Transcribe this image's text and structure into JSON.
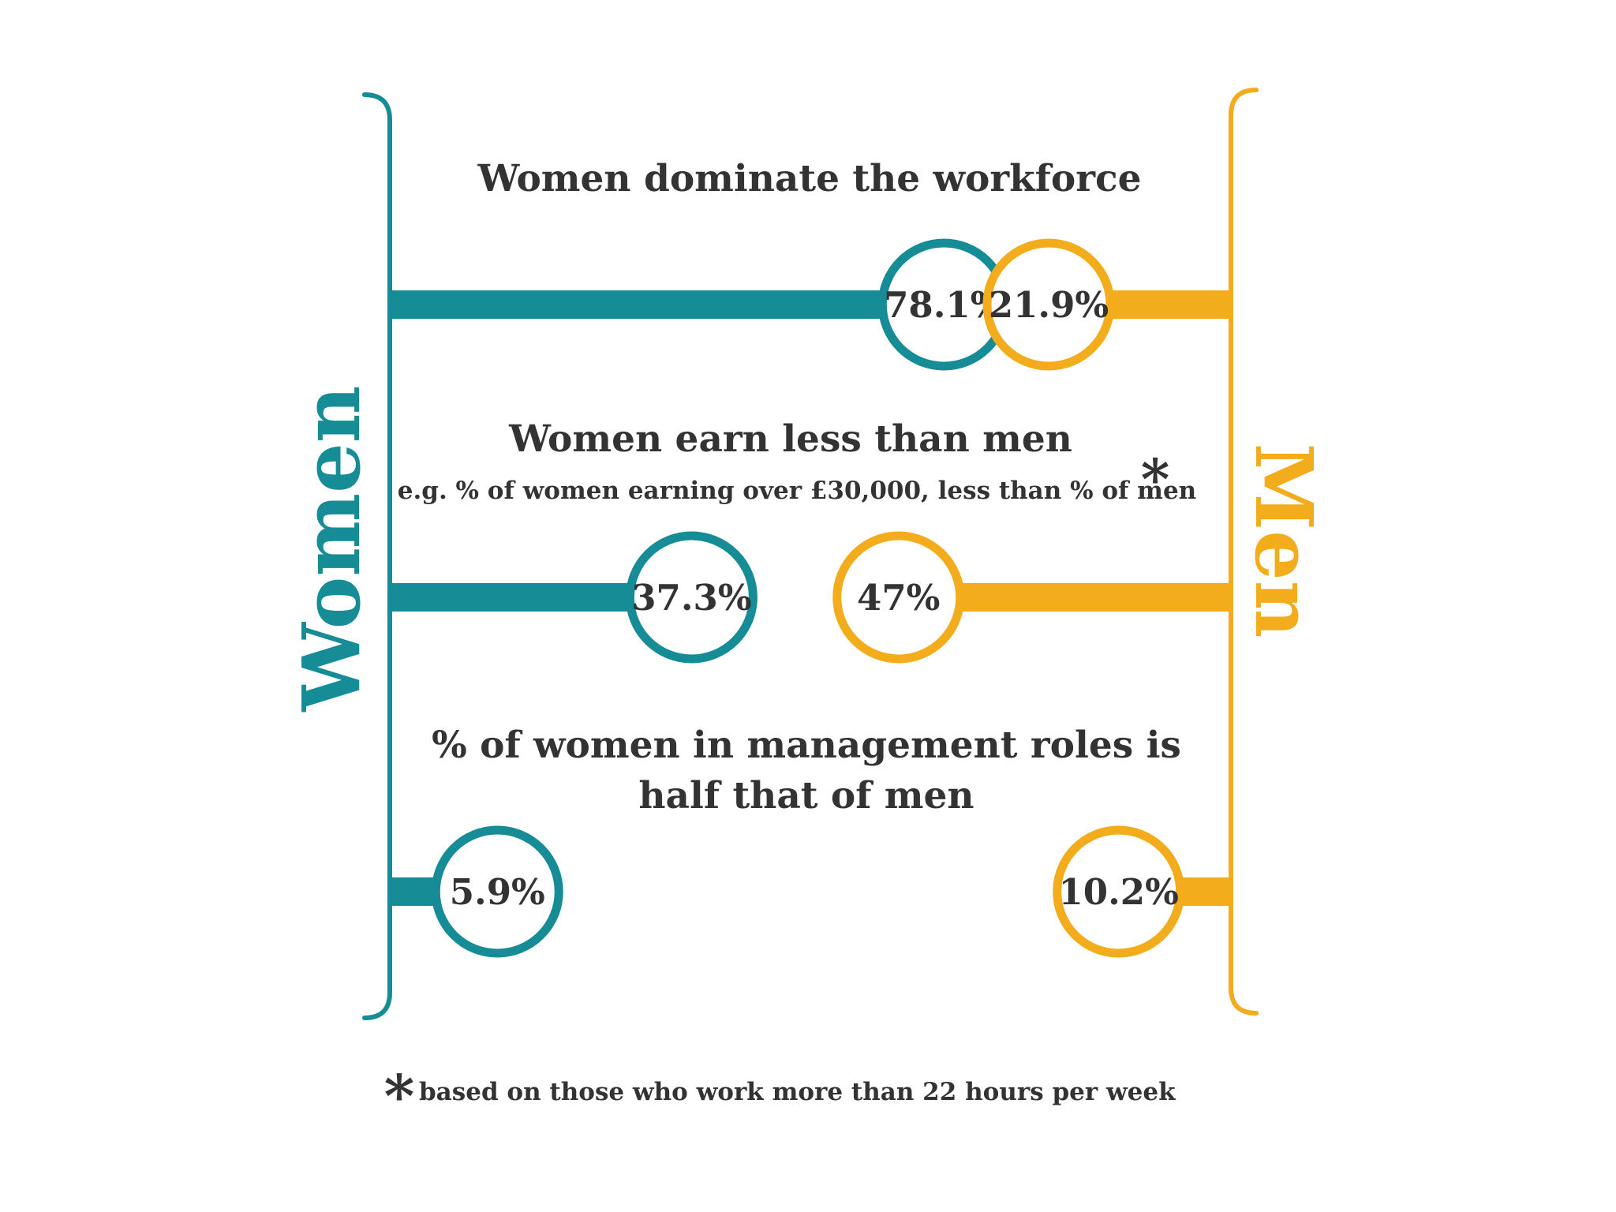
{
  "colors": {
    "women": "#168d96",
    "men": "#f2ac1c",
    "text": "#333333",
    "background": "#ffffff"
  },
  "women_label": "Women",
  "men_label": "Men",
  "chart_data": {
    "type": "bar",
    "series": [
      {
        "name": "Women",
        "values": [
          78.1,
          37.3,
          5.9
        ]
      },
      {
        "name": "Men",
        "values": [
          21.9,
          47,
          10.2
        ]
      }
    ],
    "groups": [
      {
        "title": "Women dominate the workforce",
        "subtitle": "",
        "women_value": 78.1,
        "men_value": 21.9,
        "women_label": "78.1%",
        "men_label": "21.9%"
      },
      {
        "title": "Women earn less than men",
        "subtitle": "e.g. % of women earning over £30,000, less than % of men",
        "subtitle_marker": "*",
        "women_value": 37.3,
        "men_value": 47,
        "women_label": "37.3%",
        "men_label": "47%"
      },
      {
        "title": "% of women in management roles is",
        "title_line2": "half that of men",
        "subtitle": "",
        "women_value": 5.9,
        "men_value": 10.2,
        "women_label": "5.9%",
        "men_label": "10.2%"
      }
    ],
    "value_range": [
      0,
      100
    ],
    "grid": false,
    "legend": "none"
  },
  "footnote": {
    "marker": "*",
    "text": "based on those who work more than 22 hours per week"
  }
}
